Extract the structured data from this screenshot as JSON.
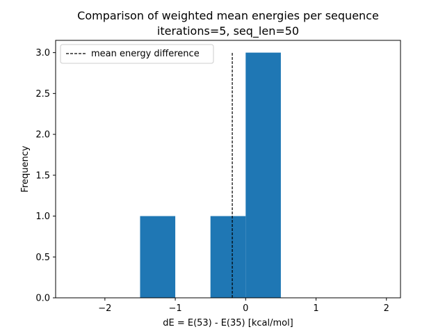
{
  "chart_data": {
    "type": "bar",
    "title_line1": "Comparison of weighted mean energies per sequence",
    "title_line2": "iterations=5, seq_len=50",
    "xlabel": "dE = E(53) - E(35) [kcal/mol]",
    "ylabel": "Frequency",
    "xlim": [
      -2.7,
      2.2
    ],
    "ylim": [
      0,
      3.15
    ],
    "xticks": [
      -2,
      -1,
      0,
      1,
      2
    ],
    "xtick_labels": [
      "−2",
      "−1",
      "0",
      "1",
      "2"
    ],
    "yticks": [
      0.0,
      0.5,
      1.0,
      1.5,
      2.0,
      2.5,
      3.0
    ],
    "ytick_labels": [
      "0.0",
      "0.5",
      "1.0",
      "1.5",
      "2.0",
      "2.5",
      "3.0"
    ],
    "bins": [
      {
        "x0": -1.5,
        "x1": -1.0,
        "count": 1
      },
      {
        "x0": -0.5,
        "x1": 0.0,
        "count": 1
      },
      {
        "x0": 0.0,
        "x1": 0.5,
        "count": 3
      }
    ],
    "bar_color": "#1f77b4",
    "mean_energy_difference": -0.19,
    "mean_line_ymax": 3.0,
    "legend": {
      "label": "mean energy difference",
      "placement": "upper-left"
    },
    "grid": false
  }
}
